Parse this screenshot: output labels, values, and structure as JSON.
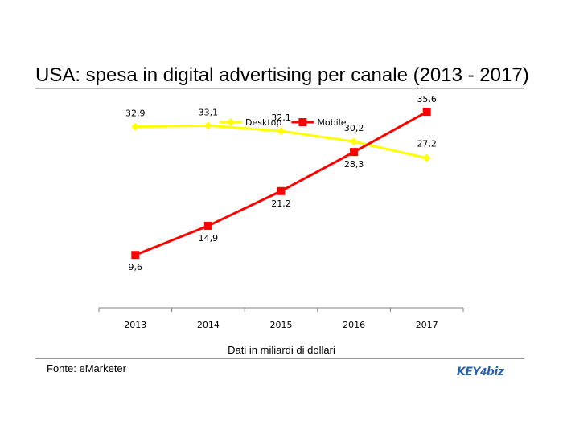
{
  "page": {
    "title": "USA: spesa in digital advertising per canale (2013 - 2017)",
    "source": "Fonte: eMarketer",
    "logo": {
      "part1": "KEY",
      "part2": "4",
      "part3": "biz"
    }
  },
  "chart_data": {
    "type": "line",
    "title": "USA: spesa in digital advertising per canale (2013 - 2017)",
    "xlabel": "Dati in miliardi di dollari",
    "ylabel": "",
    "categories": [
      "2013",
      "2014",
      "2015",
      "2016",
      "2017"
    ],
    "ylim": [
      0,
      40
    ],
    "grid": false,
    "legend": "top-center",
    "series": [
      {
        "name": "Desktop",
        "values": [
          32.9,
          33.1,
          32.1,
          30.2,
          27.2
        ],
        "labels": [
          "32,9",
          "33,1",
          "32,1",
          "30,2",
          "27,2"
        ],
        "color": "#ffff00",
        "marker": "diamond"
      },
      {
        "name": "Mobile",
        "values": [
          9.6,
          14.9,
          21.2,
          28.3,
          35.6
        ],
        "labels": [
          "9,6",
          "14,9",
          "21,2",
          "28,3",
          "35,6"
        ],
        "color": "#ff0000",
        "marker": "square"
      }
    ]
  }
}
